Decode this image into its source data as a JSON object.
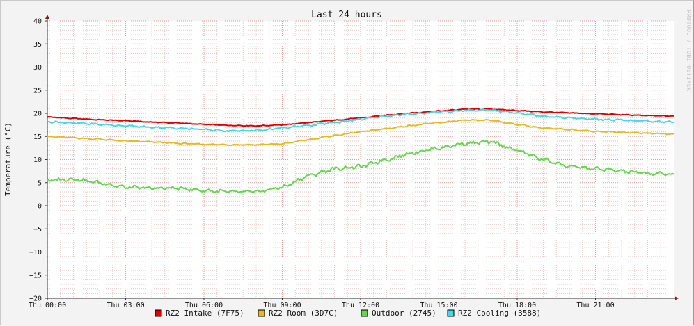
{
  "chart_data": {
    "type": "line",
    "title": "Last 24 hours",
    "ylabel": "Temperature (°C)",
    "xlabel": "",
    "watermark": "RRDTOOL / TOBI OETIKER",
    "ylim": [
      -20,
      40
    ],
    "yticks": [
      -20,
      -15,
      -10,
      -5,
      0,
      5,
      10,
      15,
      20,
      25,
      30,
      35,
      40
    ],
    "xlim": [
      0,
      24
    ],
    "xticks": [
      {
        "x": 0,
        "label": "Thu 00:00"
      },
      {
        "x": 3,
        "label": "Thu 03:00"
      },
      {
        "x": 6,
        "label": "Thu 06:00"
      },
      {
        "x": 9,
        "label": "Thu 09:00"
      },
      {
        "x": 12,
        "label": "Thu 12:00"
      },
      {
        "x": 15,
        "label": "Thu 15:00"
      },
      {
        "x": 18,
        "label": "Thu 18:00"
      },
      {
        "x": 21,
        "label": "Thu 21:00"
      }
    ],
    "grid": true,
    "legend_position": "bottom",
    "x": [
      0,
      1,
      2,
      3,
      4,
      5,
      6,
      7,
      8,
      9,
      10,
      11,
      12,
      13,
      14,
      15,
      16,
      17,
      18,
      19,
      20,
      21,
      22,
      23,
      24
    ],
    "series": [
      {
        "name": "RZ2 Intake (7F75)",
        "color": "#e00000",
        "values": [
          19.2,
          18.9,
          18.6,
          18.4,
          18.1,
          17.9,
          17.6,
          17.4,
          17.3,
          17.5,
          18.0,
          18.5,
          19.0,
          19.6,
          20.1,
          20.5,
          20.9,
          20.9,
          20.6,
          20.3,
          20.1,
          19.9,
          19.7,
          19.5,
          19.4
        ]
      },
      {
        "name": "RZ2 Room (3D7C)",
        "color": "#e8b824",
        "values": [
          15.0,
          14.7,
          14.4,
          14.0,
          13.8,
          13.5,
          13.3,
          13.2,
          13.2,
          13.4,
          14.3,
          15.2,
          16.0,
          16.7,
          17.4,
          18.0,
          18.5,
          18.5,
          17.6,
          16.8,
          16.5,
          16.1,
          15.9,
          15.7,
          15.5
        ]
      },
      {
        "name": "Outdoor (2745)",
        "color": "#5fd94a",
        "values": [
          5.5,
          5.8,
          5.0,
          4.0,
          3.8,
          3.8,
          3.3,
          3.0,
          3.0,
          4.0,
          6.5,
          8.0,
          8.5,
          10.0,
          11.5,
          12.5,
          13.5,
          13.8,
          12.0,
          10.0,
          8.5,
          8.0,
          7.5,
          7.0,
          6.8
        ]
      },
      {
        "name": "RZ2 Cooling (3588)",
        "color": "#45d6e8",
        "values": [
          18.2,
          17.9,
          17.6,
          17.3,
          17.0,
          16.8,
          16.5,
          16.2,
          16.3,
          16.8,
          17.4,
          18.0,
          18.7,
          19.4,
          19.9,
          20.3,
          20.6,
          20.7,
          20.1,
          19.4,
          19.0,
          18.7,
          18.5,
          18.3,
          18.1
        ]
      }
    ]
  }
}
